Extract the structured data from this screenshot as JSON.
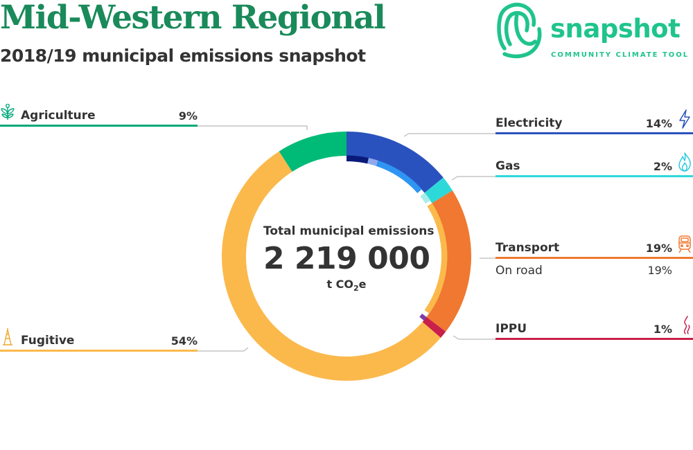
{
  "header": {
    "title": "Mid-Western Regional",
    "subtitle": "2018/19 municipal emissions snapshot"
  },
  "logo": {
    "word": "snapshot",
    "tagline": "COMMUNITY CLIMATE TOOL",
    "color": "#1fc48c"
  },
  "center": {
    "title": "Total municipal emissions",
    "value": "2 219 000",
    "unit_prefix": "t CO",
    "unit_sub": "2",
    "unit_suffix": "e"
  },
  "categories": {
    "agriculture": {
      "label": "Agriculture",
      "pct": "9%",
      "color": "#00bb77",
      "icon": "plant-icon"
    },
    "fugitive": {
      "label": "Fugitive",
      "pct": "54%",
      "color": "#fbb94c",
      "icon": "oil-rig-icon"
    },
    "electricity": {
      "label": "Electricity",
      "pct": "14%",
      "color": "#2a52be",
      "icon": "lightning-icon"
    },
    "gas": {
      "label": "Gas",
      "pct": "2%",
      "color": "#2dd8d8",
      "icon": "flame-icon"
    },
    "transport": {
      "label": "Transport",
      "pct": "19%",
      "color": "#f07830",
      "icon": "train-icon",
      "sub": {
        "label": "On road",
        "pct": "19%"
      }
    },
    "ippu": {
      "label": "IPPU",
      "pct": "1%",
      "color": "#c8204a",
      "icon": "factory-smoke-icon"
    }
  },
  "chart_data": {
    "type": "donut",
    "title": "Total municipal emissions",
    "total": 2219000,
    "unit": "t CO2e",
    "series": [
      {
        "name": "Electricity",
        "value": 14,
        "color": "#2a52be"
      },
      {
        "name": "Gas",
        "value": 2,
        "color": "#2dd8d8"
      },
      {
        "name": "Transport",
        "value": 19,
        "color": "#f07830"
      },
      {
        "name": "IPPU",
        "value": 1,
        "color": "#c8204a"
      },
      {
        "name": "Fugitive",
        "value": 54,
        "color": "#fbb94c"
      },
      {
        "name": "Agriculture",
        "value": 9,
        "color": "#00bb77"
      }
    ],
    "inner_series": [
      {
        "name": "Electricity",
        "parts": [
          {
            "value": 3.5,
            "color": "#0a1a7a"
          },
          {
            "value": 1.5,
            "color": "#8fa8ee"
          },
          {
            "value": 8.3,
            "color": "#2f95f2"
          }
        ]
      },
      {
        "name": "Gas",
        "parts": [
          {
            "value": 1.5,
            "color": "#a8ecec"
          }
        ]
      },
      {
        "name": "Transport",
        "parts": [
          {
            "value": 18.3,
            "color": "#fbb94c"
          }
        ]
      },
      {
        "name": "IPPU",
        "parts": [
          {
            "value": 0.7,
            "color": "#7b3fa8"
          }
        ]
      }
    ]
  }
}
